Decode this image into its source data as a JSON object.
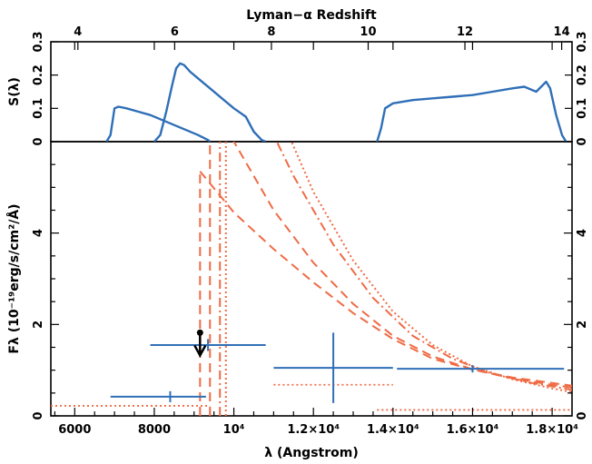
{
  "chart_data": [
    {
      "type": "line",
      "panel": "top",
      "title": "Lyman−α Redshift",
      "ylabel": "S(λ)",
      "xlim": [
        5400,
        18500
      ],
      "ylim": [
        0,
        0.3
      ],
      "top_axis_ticks": [
        "4",
        "6",
        "8",
        "10",
        "12",
        "14"
      ],
      "y_ticks": [
        "0",
        "0.1",
        "0.2",
        "0.3"
      ],
      "colors": {
        "filter": "#2f6fb7"
      },
      "series": [
        {
          "x": [
            6800,
            6900,
            7000,
            7100,
            7300,
            7600,
            7900,
            8200,
            8500,
            8800,
            9100,
            9350,
            9400
          ],
          "y": [
            0.0,
            0.02,
            0.1,
            0.105,
            0.1,
            0.09,
            0.08,
            0.065,
            0.05,
            0.035,
            0.02,
            0.005,
            0.0
          ]
        },
        {
          "x": [
            8000,
            8150,
            8300,
            8450,
            8550,
            8650,
            8750,
            8900,
            9100,
            9400,
            9700,
            10000,
            10300,
            10500,
            10700,
            10800
          ],
          "y": [
            0.0,
            0.02,
            0.09,
            0.17,
            0.22,
            0.235,
            0.23,
            0.21,
            0.19,
            0.16,
            0.13,
            0.1,
            0.075,
            0.03,
            0.005,
            0.0
          ]
        },
        {
          "x": [
            13600,
            13700,
            13800,
            14000,
            14500,
            15000,
            15500,
            16000,
            16500,
            17000,
            17300,
            17600,
            17850,
            17950,
            18100,
            18250,
            18350
          ],
          "y": [
            0.0,
            0.04,
            0.1,
            0.115,
            0.125,
            0.13,
            0.135,
            0.14,
            0.15,
            0.16,
            0.165,
            0.15,
            0.18,
            0.16,
            0.08,
            0.02,
            0.0
          ]
        }
      ]
    },
    {
      "type": "line",
      "panel": "bottom",
      "xlabel": "λ (Angstrom)",
      "ylabel": "Fλ (10⁻¹⁹erg/s/cm²/Å)",
      "xlim": [
        5400,
        18500
      ],
      "ylim": [
        0,
        6
      ],
      "x_ticks": [
        "6000",
        "8000",
        "10⁴",
        "1.2×10⁴",
        "1.4×10⁴",
        "1.6×10⁴",
        "1.8×10⁴"
      ],
      "y_ticks": [
        "0",
        "2",
        "4"
      ],
      "colors": {
        "data": "#2f6fb7",
        "model": "#ef6b45",
        "limit": "#000000"
      },
      "points": [
        {
          "x": 8400,
          "y": 0.42,
          "xerr": [
            6900,
            9300
          ],
          "yerr": [
            0.3,
            0.54
          ]
        },
        {
          "x": 9350,
          "y": 1.55,
          "xerr": [
            7900,
            10800
          ],
          "yerr": [
            1.42,
            1.68
          ]
        },
        {
          "x": 12500,
          "y": 1.05,
          "xerr": [
            11000,
            14000
          ],
          "yerr": [
            0.28,
            1.82
          ]
        },
        {
          "x": 16000,
          "y": 1.03,
          "xerr": [
            14100,
            18300
          ],
          "yerr": [
            0.95,
            1.11
          ]
        }
      ],
      "upper_limit": {
        "x": 9150,
        "y": 1.82
      },
      "models": [
        {
          "style": "dashed",
          "break": 9150,
          "y_at_break": 5.35,
          "x": [
            9150,
            10000,
            11000,
            12000,
            13000,
            14000,
            15000,
            16000,
            17000,
            18000,
            18500
          ],
          "y": [
            5.35,
            4.45,
            3.65,
            2.92,
            2.25,
            1.68,
            1.25,
            1.01,
            0.84,
            0.72,
            0.66
          ]
        },
        {
          "style": "dashed",
          "break": 9400,
          "x": [
            9400,
            10000,
            11000,
            12000,
            13000,
            14000,
            15000,
            16000,
            17000,
            18000,
            18500
          ],
          "y": [
            6.5,
            6.0,
            4.5,
            3.35,
            2.45,
            1.75,
            1.3,
            1.02,
            0.82,
            0.68,
            0.62
          ]
        },
        {
          "style": "dashdot",
          "break": 9650,
          "x": [
            9650,
            10800,
            11500,
            12500,
            13500,
            14500,
            15500,
            16500,
            17500,
            18500
          ],
          "y": [
            6.5,
            6.5,
            5.25,
            3.75,
            2.58,
            1.75,
            1.25,
            0.92,
            0.72,
            0.57
          ]
        },
        {
          "style": "dotted",
          "break": 9800,
          "x": [
            9800,
            11200,
            12000,
            13000,
            14000,
            15000,
            16000,
            17000,
            18000,
            18500
          ],
          "y": [
            6.5,
            6.5,
            4.9,
            3.4,
            2.28,
            1.55,
            1.08,
            0.8,
            0.6,
            0.52
          ]
        }
      ],
      "bandpass_levels": [
        {
          "x": [
            5400,
            9400
          ],
          "y": 0.22
        },
        {
          "x": [
            11000,
            14000
          ],
          "y": 0.68
        },
        {
          "x": [
            13600,
            18500
          ],
          "y": 0.13
        }
      ]
    }
  ]
}
